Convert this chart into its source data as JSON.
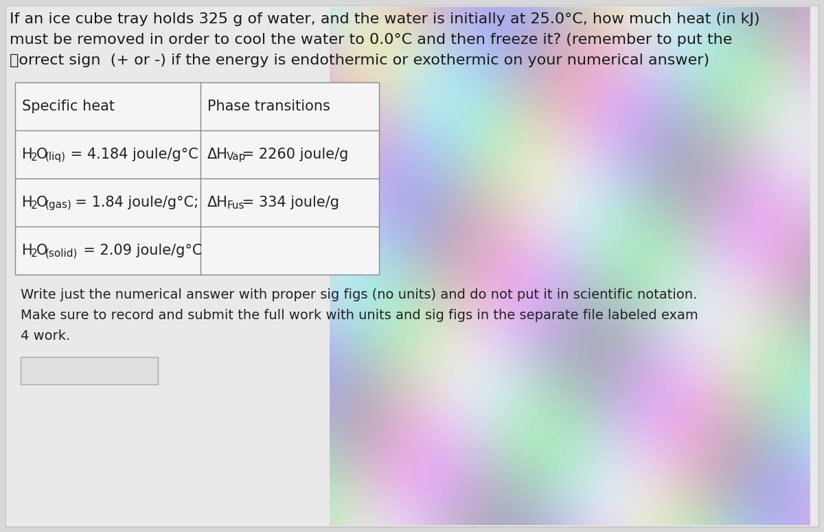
{
  "bg_left_color": "#e8e8e8",
  "bg_right_pattern": true,
  "content_bg": "#f2f2f2",
  "text_color": "#1a1a1a",
  "table_border_color": "#888888",
  "q_line1": "If an ice cube tray holds 325 g of water, and the water is initially at 25.0°C, how much heat (in kJ)",
  "q_line2": "must be removed in order to cool the water to 0.0°C and then freeze it? (remember to put the",
  "q_line3": "correct sign  (+ or -) if the energy is endothermic or exothermic on your numerical answer)",
  "footer_line1": "Write just the numerical answer with proper sig figs (no units) and do not put it in scientific notation.",
  "footer_line2": "Make sure to record and submit the full work with units and sig figs in the separate file labeled exam",
  "footer_line3": "4 work.",
  "q_fontsize": 16,
  "table_fontsize": 15,
  "footer_fontsize": 14
}
